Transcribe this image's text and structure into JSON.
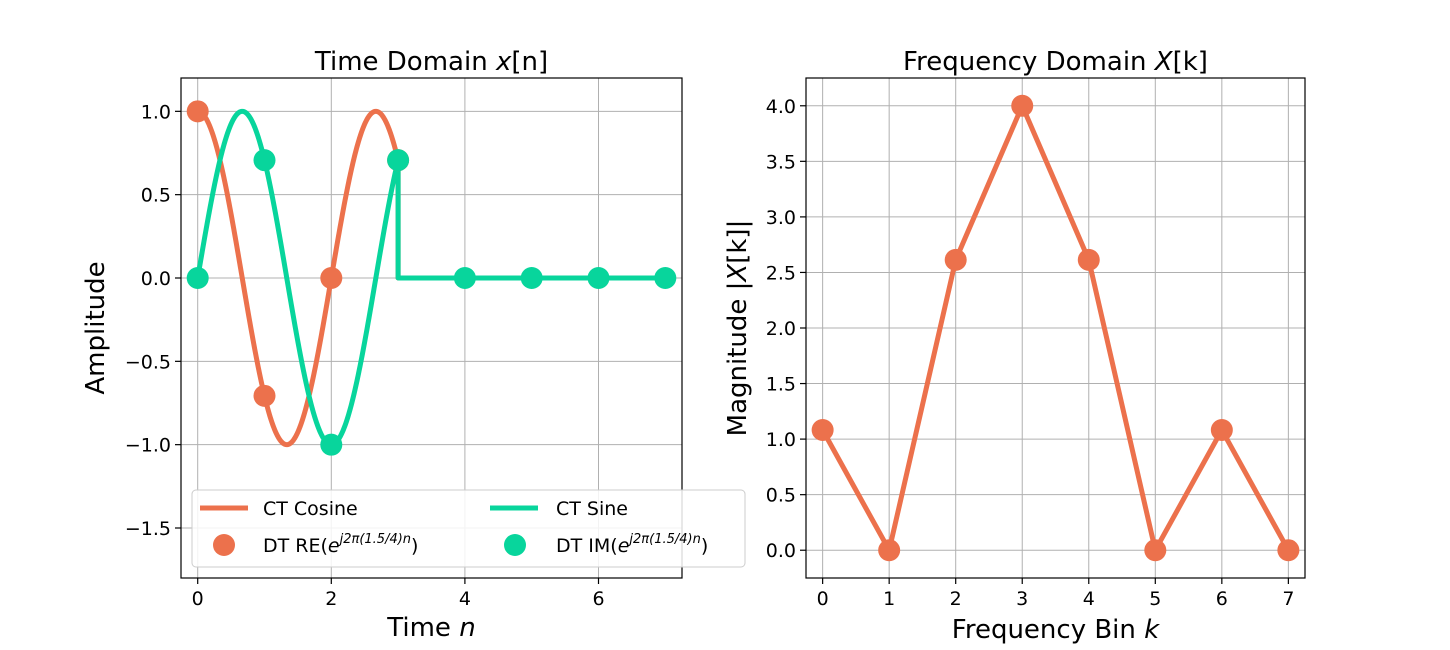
{
  "colors": {
    "cosine": "#ec714c",
    "sine": "#08d59c",
    "grid": "#b0b0b0"
  },
  "chart_data": [
    {
      "type": "line",
      "title_prefix": "Time Domain ",
      "title_math": "x",
      "title_suffix": "[n]",
      "xlabel_text": "Time ",
      "xlabel_math": "n",
      "ylabel": "Amplitude",
      "xlim": [
        -0.25,
        7.25
      ],
      "ylim": [
        -1.8,
        1.2
      ],
      "xticks": [
        0,
        2,
        4,
        6
      ],
      "xtick_labels": [
        "0",
        "2",
        "4",
        "6"
      ],
      "yticks": [
        -1.5,
        -1.0,
        -0.5,
        0.0,
        0.5,
        1.0
      ],
      "ytick_labels": [
        "−1.5",
        "−1.0",
        "−0.5",
        "0.0",
        "0.5",
        "1.0"
      ],
      "grid": true,
      "legend_position": "lower-left",
      "continuous": {
        "frequency_cycles_per_sample": 0.375,
        "signal_end": 3,
        "x_end": 7
      },
      "series": [
        {
          "name": "CT Cosine",
          "kind": "line",
          "color_key": "cosine"
        },
        {
          "name": "CT Sine",
          "kind": "line",
          "color_key": "sine"
        },
        {
          "name": "DT RE",
          "name_exp": "j2π(1.5/4)n",
          "kind": "marker",
          "color_key": "cosine",
          "x": [
            0,
            1,
            2,
            3
          ],
          "y": [
            1.0,
            -0.7071,
            0.0,
            0.7071
          ]
        },
        {
          "name": "DT IM",
          "name_exp": "j2π(1.5/4)n",
          "kind": "marker",
          "color_key": "sine",
          "x": [
            0,
            1,
            2,
            3,
            4,
            5,
            6,
            7
          ],
          "y": [
            0.0,
            0.7071,
            -1.0,
            0.7071,
            0.0,
            0.0,
            0.0,
            0.0
          ]
        }
      ]
    },
    {
      "type": "line",
      "title_prefix": "Frequency Domain ",
      "title_math": "X",
      "title_suffix": "[k]",
      "xlabel_text": "Frequency Bin ",
      "xlabel_math": "k",
      "ylabel_text": "Magnitude |",
      "ylabel_math": "X",
      "ylabel_suffix": "[k]|",
      "xlim": [
        -0.25,
        7.25
      ],
      "ylim": [
        -0.25,
        4.25
      ],
      "xticks": [
        0,
        1,
        2,
        3,
        4,
        5,
        6,
        7
      ],
      "xtick_labels": [
        "0",
        "1",
        "2",
        "3",
        "4",
        "5",
        "6",
        "7"
      ],
      "yticks": [
        0.0,
        0.5,
        1.0,
        1.5,
        2.0,
        2.5,
        3.0,
        3.5,
        4.0
      ],
      "ytick_labels": [
        "0.0",
        "0.5",
        "1.0",
        "1.5",
        "2.0",
        "2.5",
        "3.0",
        "3.5",
        "4.0"
      ],
      "grid": true,
      "series": [
        {
          "kind": "line+marker",
          "color_key": "cosine",
          "x": [
            0,
            1,
            2,
            3,
            4,
            5,
            6,
            7
          ],
          "y": [
            1.082,
            0.0,
            2.613,
            4.0,
            2.613,
            0.0,
            1.082,
            0.0
          ]
        }
      ]
    }
  ]
}
